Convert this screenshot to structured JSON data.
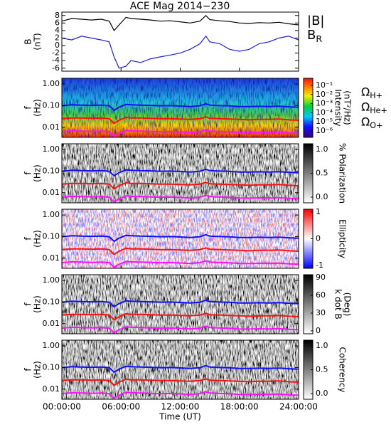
{
  "chart_data": [
    {
      "type": "line",
      "title": "ACE Mag 2014−230",
      "ylabel": [
        "B",
        "(nT)"
      ],
      "x": [
        0,
        1,
        2,
        3,
        4,
        4.8,
        5.3,
        5.8,
        6.5,
        7,
        8,
        9,
        10,
        11,
        12,
        13,
        14,
        14.6,
        15,
        16,
        17,
        18,
        19,
        20,
        21,
        22,
        23,
        24
      ],
      "xlim": [
        0,
        24
      ],
      "ylim": [
        -6.8,
        8.9
      ],
      "yticks": [
        -6,
        -4,
        -2,
        0,
        2,
        4,
        6,
        8
      ],
      "series": [
        {
          "name": "|B|",
          "color": "#000000",
          "values": [
            6.5,
            7.2,
            7.0,
            6.8,
            7.0,
            6.5,
            4.0,
            5.5,
            7.5,
            7.2,
            7.0,
            6.8,
            6.5,
            6.6,
            6.3,
            6.0,
            6.5,
            8.0,
            6.9,
            6.6,
            6.4,
            6.0,
            5.9,
            6.1,
            6.0,
            6.2,
            5.8,
            5.5
          ]
        },
        {
          "name": "B",
          "name_sub": "R",
          "color": "#1f1fe0",
          "values": [
            2,
            1.5,
            2.5,
            2.0,
            1.5,
            1.0,
            -3.0,
            -6.0,
            -5.5,
            -4.0,
            -4.5,
            -3.5,
            -3.0,
            -2.5,
            -2.0,
            -1.0,
            0.5,
            2.5,
            1.0,
            0.5,
            -1.0,
            -1.5,
            -1.0,
            0.5,
            1.0,
            2.0,
            2.5,
            1.5
          ]
        }
      ]
    },
    {
      "type": "spectrogram",
      "ylabel": [
        "f",
        "(Hz)"
      ],
      "ylog": true,
      "xlim": [
        0,
        24
      ],
      "ylim": [
        0.0034,
        1.85
      ],
      "yticks": [
        0.01,
        {
          "value": 0.1,
          "label": "0.10"
        },
        {
          "value": 1,
          "label": "1.00"
        }
      ],
      "colormap": "rainbow",
      "colorbar": {
        "label": [
          "Intensity",
          "(nT²/Hz)"
        ],
        "log": true,
        "lim": [
          2e-07,
          0.6
        ],
        "ticks": [
          {
            "value": 0.1,
            "label": "10⁻¹"
          },
          {
            "value": 0.01,
            "label": "10⁻²"
          },
          {
            "value": 0.001,
            "label": "10⁻³"
          },
          {
            "value": 0.0001,
            "label": "10⁻⁴"
          },
          {
            "value": 1e-05,
            "label": "10⁻⁵"
          },
          {
            "value": 1e-06,
            "label": "10⁻⁶"
          }
        ]
      },
      "x": [
        0,
        1,
        2,
        3,
        4,
        4.8,
        5.3,
        5.8,
        6.5,
        7,
        8,
        9,
        10,
        11,
        12,
        13,
        14,
        14.6,
        15,
        16,
        17,
        18,
        19,
        20,
        21,
        22,
        23,
        24
      ],
      "series": [
        {
          "name": "Ω",
          "name_sub": "H+",
          "color": "#1010ff",
          "values": [
            0.099,
            0.109,
            0.106,
            0.103,
            0.106,
            0.099,
            0.061,
            0.084,
            0.114,
            0.109,
            0.106,
            0.103,
            0.099,
            0.1,
            0.096,
            0.091,
            0.099,
            0.122,
            0.105,
            0.1,
            0.097,
            0.091,
            0.09,
            0.093,
            0.091,
            0.094,
            0.088,
            0.084
          ]
        },
        {
          "name": "Ω",
          "name_sub": "He+",
          "color": "#ff1010",
          "values": [
            0.025,
            0.027,
            0.027,
            0.026,
            0.027,
            0.025,
            0.015,
            0.021,
            0.029,
            0.027,
            0.027,
            0.026,
            0.025,
            0.025,
            0.024,
            0.023,
            0.025,
            0.03,
            0.026,
            0.025,
            0.024,
            0.023,
            0.022,
            0.023,
            0.023,
            0.024,
            0.022,
            0.021
          ]
        },
        {
          "name": "Ω",
          "name_sub": "O+",
          "color": "#ff10ff",
          "values": [
            0.0062,
            0.0068,
            0.0066,
            0.0064,
            0.0066,
            0.0062,
            0.0038,
            0.0052,
            0.0071,
            0.0068,
            0.0066,
            0.0064,
            0.0062,
            0.0063,
            0.006,
            0.0057,
            0.0062,
            0.0076,
            0.0066,
            0.0063,
            0.0061,
            0.0057,
            0.0056,
            0.0058,
            0.0057,
            0.0059,
            0.0055,
            0.0052
          ]
        }
      ]
    },
    {
      "type": "spectrogram",
      "ylabel": [
        "f",
        "(Hz)"
      ],
      "ylog": true,
      "xlim": [
        0,
        24
      ],
      "ylim": [
        0.0034,
        1.85
      ],
      "yticks": [
        0.01,
        {
          "value": 0.1,
          "label": "0.10"
        },
        {
          "value": 1,
          "label": "1.00"
        }
      ],
      "colormap": "gray",
      "colorbar": {
        "label": [
          "% Polarization"
        ],
        "lim": [
          -0.12,
          1.12
        ],
        "ticks": [
          {
            "value": 0,
            "label": "0.0"
          },
          0.5,
          {
            "value": 1,
            "label": "1.0"
          }
        ]
      }
    },
    {
      "type": "spectrogram",
      "ylabel": [
        "f",
        "(Hz)"
      ],
      "ylog": true,
      "xlim": [
        0,
        24
      ],
      "ylim": [
        0.0034,
        1.85
      ],
      "yticks": [
        0.01,
        {
          "value": 0.1,
          "label": "0.10"
        },
        {
          "value": 1,
          "label": "1.00"
        }
      ],
      "colormap": "bwr",
      "colorbar": {
        "label": [
          "Ellipticity"
        ],
        "lim": [
          -1.1,
          1.1
        ],
        "ticks": [
          -1,
          0,
          1
        ]
      }
    },
    {
      "type": "spectrogram",
      "ylabel": [
        "f",
        "(Hz)"
      ],
      "ylog": true,
      "xlim": [
        0,
        24
      ],
      "ylim": [
        0.0034,
        1.85
      ],
      "yticks": [
        0.01,
        {
          "value": 0.1,
          "label": "0.10"
        },
        {
          "value": 1,
          "label": "1.00"
        }
      ],
      "colormap": "gray",
      "colorbar": {
        "label": [
          "k dot B",
          "(Deg)"
        ],
        "lim": [
          -5,
          95
        ],
        "ticks": [
          0,
          30,
          60,
          90
        ]
      }
    },
    {
      "type": "spectrogram",
      "ylabel": [
        "f",
        "(Hz)"
      ],
      "ylog": true,
      "xlim": [
        0,
        24
      ],
      "ylim": [
        0.0034,
        1.85
      ],
      "yticks": [
        0.01,
        {
          "value": 0.1,
          "label": "0.10"
        },
        {
          "value": 1,
          "label": "1.00"
        }
      ],
      "colormap": "gray",
      "colorbar": {
        "label": [
          "Coherency"
        ],
        "lim": [
          -0.12,
          1.12
        ],
        "ticks": [
          {
            "value": 0,
            "label": "0.0"
          },
          0.5,
          {
            "value": 1,
            "label": "1.0"
          }
        ]
      },
      "xlabel": "Time (UT)",
      "xticks": [
        {
          "value": 0,
          "label": "00:00:00"
        },
        {
          "value": 6,
          "label": "06:00:00"
        },
        {
          "value": 12,
          "label": "12:00:00"
        },
        {
          "value": 18,
          "label": "18:00:00"
        },
        {
          "value": 24,
          "label": "24:00:00"
        }
      ]
    }
  ]
}
